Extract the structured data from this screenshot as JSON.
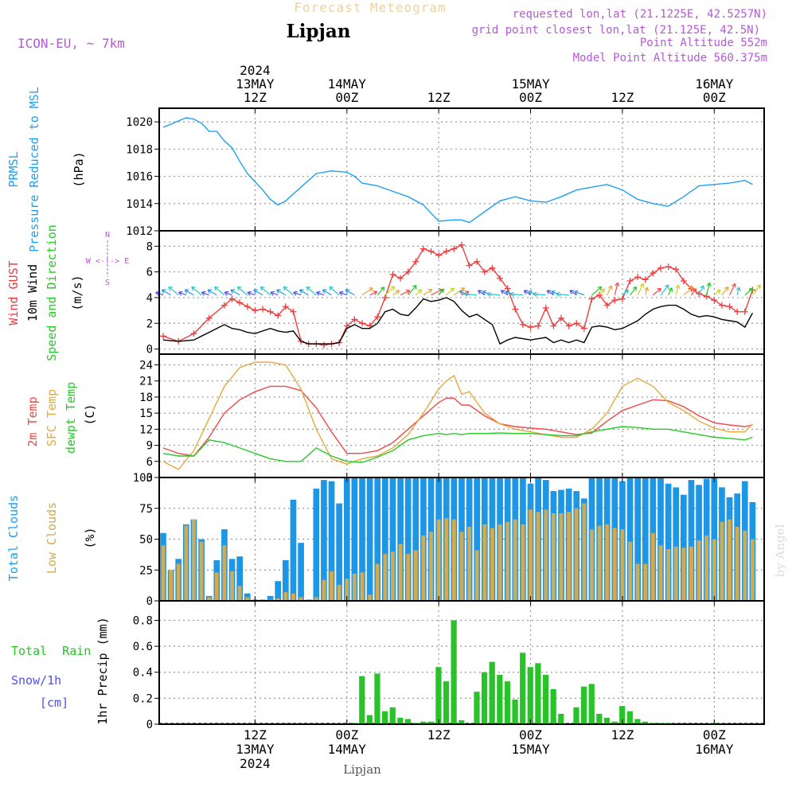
{
  "header": {
    "subtitle": "Forecast Meteogram",
    "location": "Lipjan",
    "model": "ICON-EU, ~ 7km",
    "requested": "requested lon,lat (21.1225E, 42.5257N)",
    "gridpoint": "grid point closest lon,lat (21.125E, 42.5N)",
    "point_alt": "Point Altitude 552m",
    "model_alt": "Model Point Altitude 560.375m",
    "footer_location": "Lipjan",
    "credit": "by Angel"
  },
  "colors": {
    "pressure": "#1ea0f0",
    "gust": "#f03c3c",
    "wind": "#000000",
    "temp": "#f04848",
    "sfc": "#e6a83c",
    "dewpt": "#28c828",
    "cloud_total": "#1e96e6",
    "cloud_low": "#d2aa50",
    "rain": "#28c328",
    "snow": "#5050f0",
    "label_purple": "#b45ad2",
    "label_orange": "#e6a83c"
  },
  "time_axis": {
    "top": [
      {
        "h": 12,
        "lines": [
          "2024",
          "13MAY",
          "12Z"
        ]
      },
      {
        "h": 24,
        "lines": [
          "14MAY",
          "00Z"
        ]
      },
      {
        "h": 36,
        "lines": [
          "12Z"
        ]
      },
      {
        "h": 48,
        "lines": [
          "15MAY",
          "00Z"
        ]
      },
      {
        "h": 60,
        "lines": [
          "12Z"
        ]
      },
      {
        "h": 72,
        "lines": [
          "16MAY",
          "00Z"
        ]
      }
    ],
    "bottom": [
      {
        "h": 12,
        "lines": [
          "12Z",
          "13MAY",
          "2024"
        ]
      },
      {
        "h": 24,
        "lines": [
          "00Z",
          "14MAY"
        ]
      },
      {
        "h": 36,
        "lines": [
          "12Z"
        ]
      },
      {
        "h": 48,
        "lines": [
          "00Z",
          "15MAY"
        ]
      },
      {
        "h": 60,
        "lines": [
          "12Z"
        ]
      },
      {
        "h": 72,
        "lines": [
          "00Z",
          "16MAY"
        ]
      }
    ]
  },
  "panels": {
    "pressure": {
      "labels": [
        "PRMSL",
        "Pressure Reduced to MSL"
      ],
      "unit": "(hPa)"
    },
    "wind": {
      "labels": [
        "Wind GUST",
        "10m Wind",
        "Speed and Direction"
      ],
      "unit": "(m/s)",
      "compass": [
        "N",
        "W <-!-> E",
        "S"
      ]
    },
    "temp": {
      "labels": [
        "2m Temp",
        "SFC Temp",
        "dewpt Temp"
      ],
      "unit": "(C)"
    },
    "clouds": {
      "labels": [
        "Total Clouds",
        "Low Clouds"
      ],
      "unit": "(%)"
    },
    "precip": {
      "labels": [
        "Total Rain",
        "Snow/1h",
        "[cm]"
      ],
      "unit": "1hr Precip (mm)"
    }
  },
  "chart_data": [
    {
      "type": "line",
      "name": "pressure",
      "title": "PRMSL Pressure Reduced to MSL",
      "ylabel": "hPa",
      "x_hours": [
        0,
        3,
        4,
        5,
        6,
        7,
        8,
        9,
        10,
        11,
        12,
        13,
        14,
        15,
        16,
        18,
        20,
        22,
        24,
        25,
        26,
        28,
        30,
        32,
        34,
        35,
        36,
        38,
        39,
        40,
        41,
        42,
        44,
        46,
        48,
        50,
        52,
        54,
        56,
        58,
        60,
        62,
        64,
        66,
        68,
        70,
        72,
        74,
        76,
        77
      ],
      "values": [
        1019.6,
        1020.3,
        1020.2,
        1019.9,
        1019.3,
        1019.3,
        1018.6,
        1018.1,
        1017.1,
        1016.2,
        1015.6,
        1015.0,
        1014.3,
        1013.9,
        1014.2,
        1015.2,
        1016.2,
        1016.4,
        1016.3,
        1016.0,
        1015.5,
        1015.3,
        1014.9,
        1014.5,
        1013.9,
        1013.3,
        1012.7,
        1012.8,
        1012.8,
        1012.6,
        1013.0,
        1013.4,
        1014.2,
        1014.5,
        1014.2,
        1014.1,
        1014.5,
        1015.0,
        1015.2,
        1015.4,
        1015.0,
        1014.3,
        1014.0,
        1013.8,
        1014.5,
        1015.3,
        1015.4,
        1015.5,
        1015.7,
        1015.4
      ],
      "ylim": [
        1012,
        1021
      ],
      "yticks": [
        1012,
        1014,
        1016,
        1018,
        1020
      ]
    },
    {
      "type": "line",
      "name": "wind",
      "title": "Wind GUST / 10m Wind Speed and Direction",
      "ylabel": "m/s",
      "x_hours": [
        0,
        2,
        4,
        6,
        8,
        9,
        10,
        11,
        12,
        13,
        14,
        15,
        16,
        17,
        18,
        19,
        20,
        21,
        22,
        23,
        24,
        25,
        26,
        27,
        28,
        29,
        30,
        31,
        32,
        33,
        34,
        35,
        36,
        37,
        38,
        39,
        40,
        41,
        42,
        43,
        44,
        45,
        46,
        47,
        48,
        49,
        50,
        51,
        52,
        53,
        54,
        55,
        56,
        57,
        58,
        59,
        60,
        61,
        62,
        63,
        64,
        65,
        66,
        67,
        68,
        69,
        70,
        71,
        72,
        73,
        74,
        75,
        76,
        77
      ],
      "series": [
        {
          "name": "Wind GUST",
          "values": [
            1.0,
            0.6,
            1.2,
            2.4,
            3.4,
            3.9,
            3.6,
            3.3,
            3.0,
            3.1,
            2.9,
            2.6,
            3.3,
            2.9,
            0.6,
            0.4,
            0.4,
            0.3,
            0.4,
            0.5,
            1.8,
            2.3,
            2.0,
            1.8,
            2.5,
            4.0,
            5.8,
            5.5,
            6.0,
            6.8,
            7.8,
            7.6,
            7.3,
            7.6,
            7.8,
            8.1,
            6.5,
            6.8,
            6.0,
            6.3,
            5.5,
            4.7,
            3.1,
            1.9,
            1.7,
            1.8,
            3.2,
            1.8,
            2.4,
            1.8,
            2.0,
            1.6,
            3.9,
            4.2,
            3.4,
            3.8,
            3.9,
            5.3,
            5.6,
            5.4,
            5.9,
            6.3,
            6.4,
            6.2,
            5.3,
            4.7,
            4.3,
            4.1,
            3.8,
            3.4,
            3.3,
            2.9,
            2.9,
            4.6
          ]
        },
        {
          "name": "10m Wind",
          "values": [
            0.7,
            0.6,
            0.7,
            1.3,
            1.9,
            1.6,
            1.5,
            1.3,
            1.2,
            1.4,
            1.6,
            1.4,
            1.3,
            1.4,
            0.6,
            0.4,
            0.4,
            0.4,
            0.4,
            0.5,
            1.6,
            1.9,
            1.6,
            1.6,
            2.0,
            2.9,
            3.1,
            2.7,
            2.6,
            3.2,
            3.9,
            3.7,
            3.8,
            4.0,
            3.7,
            3.0,
            2.5,
            2.7,
            2.3,
            1.9,
            0.4,
            0.7,
            0.9,
            0.8,
            0.7,
            0.8,
            0.9,
            0.5,
            0.7,
            0.5,
            0.7,
            0.5,
            1.7,
            1.8,
            1.7,
            1.5,
            1.6,
            1.9,
            2.2,
            2.7,
            3.1,
            3.3,
            3.4,
            3.4,
            3.1,
            2.7,
            2.5,
            2.6,
            2.5,
            2.3,
            2.2,
            2.1,
            1.7,
            2.8
          ]
        }
      ],
      "ylim": [
        -0.4,
        9.2
      ],
      "yticks": [
        0,
        2,
        4,
        6,
        8
      ]
    },
    {
      "type": "line",
      "name": "temperature",
      "title": "2m Temp / SFC Temp / dewpt Temp",
      "ylabel": "C",
      "x_hours": [
        0,
        2,
        4,
        6,
        8,
        10,
        12,
        14,
        16,
        18,
        20,
        22,
        24,
        26,
        28,
        30,
        32,
        34,
        36,
        37,
        38,
        39,
        40,
        42,
        44,
        46,
        48,
        50,
        52,
        54,
        56,
        58,
        60,
        62,
        64,
        66,
        68,
        70,
        72,
        74,
        76,
        77
      ],
      "series": [
        {
          "name": "2m Temp",
          "values": [
            8.5,
            7.5,
            7.0,
            10.5,
            15.0,
            17.5,
            19.0,
            20.0,
            20.0,
            19.2,
            16.0,
            11.5,
            7.5,
            7.5,
            8.0,
            9.5,
            12.0,
            14.5,
            17.0,
            17.8,
            17.8,
            16.5,
            16.5,
            14.5,
            13.0,
            12.5,
            12.2,
            12.0,
            11.5,
            11.0,
            11.3,
            13.5,
            15.5,
            16.5,
            17.5,
            17.3,
            16.2,
            14.5,
            13.2,
            12.8,
            12.5,
            12.8
          ]
        },
        {
          "name": "SFC Temp",
          "values": [
            6.0,
            4.5,
            8.0,
            14.0,
            20.0,
            23.5,
            24.5,
            24.5,
            24.0,
            19.5,
            12.0,
            6.5,
            5.5,
            6.5,
            7.0,
            8.5,
            11.0,
            15.0,
            19.5,
            21.0,
            22.0,
            18.5,
            19.0,
            15.0,
            13.0,
            12.0,
            11.5,
            11.0,
            10.5,
            10.5,
            12.0,
            15.0,
            20.0,
            21.5,
            20.0,
            17.0,
            15.5,
            13.5,
            12.2,
            11.5,
            11.5,
            13.0
          ]
        },
        {
          "name": "dewpt Temp",
          "values": [
            7.5,
            7.0,
            7.0,
            10.0,
            9.5,
            8.5,
            7.5,
            6.5,
            6.0,
            6.0,
            8.5,
            7.0,
            6.0,
            5.8,
            6.8,
            8.0,
            10.0,
            10.8,
            11.2,
            11.0,
            11.2,
            11.0,
            11.2,
            11.2,
            11.3,
            11.2,
            11.2,
            11.0,
            10.8,
            10.8,
            11.5,
            12.0,
            12.5,
            12.3,
            12.0,
            12.0,
            11.5,
            11.0,
            10.5,
            10.3,
            10.0,
            10.5
          ]
        }
      ],
      "ylim": [
        3,
        26
      ],
      "yticks": [
        3,
        6,
        9,
        12,
        15,
        18,
        21,
        24
      ]
    },
    {
      "type": "bar",
      "name": "clouds",
      "title": "Total Clouds / Low Clouds",
      "ylabel": "%",
      "x_hours": [
        0,
        1,
        2,
        3,
        4,
        5,
        6,
        7,
        8,
        9,
        10,
        11,
        12,
        13,
        14,
        15,
        16,
        17,
        18,
        19,
        20,
        21,
        22,
        23,
        24,
        25,
        26,
        27,
        28,
        29,
        30,
        31,
        32,
        33,
        34,
        35,
        36,
        37,
        38,
        39,
        40,
        41,
        42,
        43,
        44,
        45,
        46,
        47,
        48,
        49,
        50,
        51,
        52,
        53,
        54,
        55,
        56,
        57,
        58,
        59,
        60,
        61,
        62,
        63,
        64,
        65,
        66,
        67,
        68,
        69,
        70,
        71,
        72,
        73,
        74,
        75,
        76,
        77
      ],
      "series": [
        {
          "name": "Total Clouds",
          "values": [
            55,
            25,
            34,
            62,
            66,
            50,
            4,
            33,
            58,
            34,
            36,
            6,
            1,
            1,
            4,
            16,
            33,
            82,
            47,
            1,
            91,
            98,
            97,
            79,
            100,
            100,
            100,
            100,
            100,
            100,
            100,
            100,
            100,
            100,
            100,
            100,
            100,
            100,
            100,
            100,
            100,
            100,
            100,
            100,
            100,
            100,
            100,
            100,
            95,
            100,
            98,
            89,
            90,
            91,
            89,
            83,
            100,
            100,
            100,
            100,
            97,
            100,
            100,
            100,
            100,
            100,
            95,
            92,
            86,
            98,
            94,
            99,
            100,
            92,
            84,
            87,
            97,
            80
          ]
        },
        {
          "name": "Low Clouds",
          "values": [
            45,
            25,
            30,
            61,
            66,
            48,
            3,
            23,
            45,
            24,
            12,
            3,
            0,
            0,
            1,
            2,
            7,
            6,
            3,
            0,
            3,
            17,
            24,
            13,
            18,
            22,
            23,
            5,
            30,
            38,
            40,
            46,
            38,
            41,
            53,
            56,
            66,
            67,
            66,
            56,
            60,
            41,
            62,
            59,
            62,
            64,
            66,
            62,
            74,
            72,
            74,
            71,
            71,
            72,
            75,
            79,
            58,
            61,
            62,
            59,
            58,
            48,
            30,
            30,
            55,
            45,
            42,
            44,
            43,
            44,
            49,
            53,
            50,
            64,
            66,
            60,
            57,
            50
          ]
        }
      ],
      "ylim": [
        0,
        100
      ],
      "yticks": [
        0,
        25,
        50,
        75,
        100
      ]
    },
    {
      "type": "bar",
      "name": "precipitation",
      "title": "1hr Precip (mm)",
      "ylabel": "mm",
      "x_hours": [
        25,
        26,
        27,
        28,
        29,
        30,
        31,
        32,
        33,
        34,
        35,
        36,
        37,
        38,
        39,
        40,
        41,
        42,
        43,
        44,
        45,
        46,
        47,
        48,
        49,
        50,
        51,
        52,
        53,
        54,
        55,
        56,
        57,
        58,
        59,
        60,
        61,
        62,
        63,
        64,
        65,
        66,
        67,
        72
      ],
      "series": [
        {
          "name": "Total Rain",
          "values": [
            0.01,
            0.37,
            0.07,
            0.39,
            0.1,
            0.13,
            0.05,
            0.04,
            0.01,
            0.02,
            0.02,
            0.44,
            0.33,
            0.8,
            0.03,
            0.0,
            0.25,
            0.4,
            0.48,
            0.38,
            0.33,
            0.19,
            0.55,
            0.44,
            0.47,
            0.38,
            0.27,
            0.08,
            0.0,
            0.13,
            0.29,
            0.31,
            0.08,
            0.05,
            0.02,
            0.14,
            0.1,
            0.04,
            0.02,
            0.01,
            0.01,
            0.01,
            0.0,
            0.01
          ]
        }
      ],
      "ylim": [
        0,
        0.95
      ],
      "yticks": [
        0,
        0.2,
        0.4,
        0.6,
        0.8
      ]
    }
  ]
}
